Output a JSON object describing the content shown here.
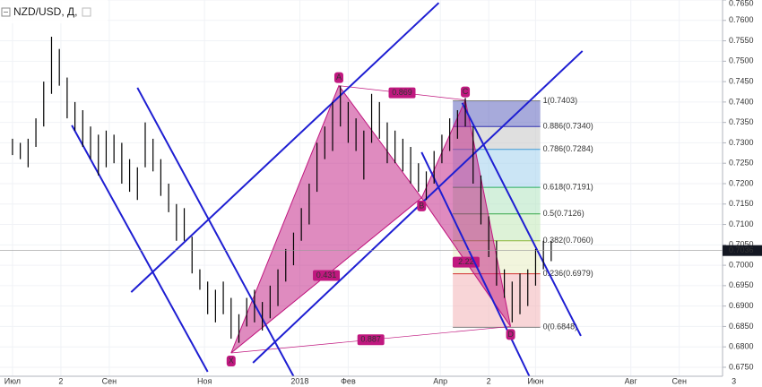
{
  "chart_data": {
    "type": "ohlc",
    "title": "NZD/USD, Д,",
    "color": "#000000",
    "x": [
      0,
      5,
      10,
      15,
      20,
      25,
      30,
      35,
      40,
      45,
      50,
      55,
      60,
      65,
      70,
      75,
      80,
      85,
      90,
      95,
      100,
      105,
      110,
      115,
      120,
      125,
      130,
      135,
      140,
      145,
      150,
      155,
      160,
      165,
      170,
      175,
      180,
      185,
      190,
      195,
      200,
      205,
      210,
      215,
      220,
      225,
      230,
      235,
      240,
      245,
      250,
      255,
      260,
      265,
      270,
      275,
      280,
      285,
      290,
      295,
      300,
      305,
      310,
      315,
      320,
      325,
      330,
      335,
      340,
      345
    ],
    "high": [
      0.731,
      0.73,
      0.731,
      0.736,
      0.745,
      0.756,
      0.753,
      0.746,
      0.74,
      0.738,
      0.734,
      0.732,
      0.733,
      0.732,
      0.73,
      0.726,
      0.724,
      0.735,
      0.731,
      0.726,
      0.72,
      0.715,
      0.714,
      0.707,
      0.699,
      0.696,
      0.694,
      0.696,
      0.692,
      0.688,
      0.692,
      0.694,
      0.691,
      0.695,
      0.699,
      0.704,
      0.708,
      0.714,
      0.72,
      0.73,
      0.734,
      0.74,
      0.744,
      0.74,
      0.736,
      0.733,
      0.742,
      0.74,
      0.735,
      0.733,
      0.731,
      0.729,
      0.725,
      0.723,
      0.728,
      0.732,
      0.736,
      0.738,
      0.741,
      0.734,
      0.722,
      0.712,
      0.706,
      0.699,
      0.696,
      0.698,
      0.699,
      0.704,
      0.706,
      0.706
    ],
    "low": [
      0.727,
      0.726,
      0.724,
      0.729,
      0.734,
      0.742,
      0.744,
      0.736,
      0.733,
      0.729,
      0.726,
      0.722,
      0.724,
      0.725,
      0.72,
      0.718,
      0.716,
      0.724,
      0.723,
      0.717,
      0.713,
      0.706,
      0.706,
      0.698,
      0.694,
      0.688,
      0.686,
      0.688,
      0.682,
      0.681,
      0.685,
      0.686,
      0.684,
      0.687,
      0.69,
      0.696,
      0.7,
      0.706,
      0.71,
      0.718,
      0.726,
      0.728,
      0.734,
      0.73,
      0.728,
      0.721,
      0.73,
      0.731,
      0.725,
      0.725,
      0.723,
      0.72,
      0.718,
      0.716,
      0.72,
      0.725,
      0.728,
      0.731,
      0.734,
      0.72,
      0.71,
      0.702,
      0.695,
      0.692,
      0.686,
      0.688,
      0.69,
      0.695,
      0.699,
      0.701
    ],
    "xlim": [
      -8,
      480
    ],
    "ylim": [
      0.6728,
      0.765
    ],
    "xticks": [
      {
        "value": 0,
        "label": "Июл"
      },
      {
        "value": 31,
        "label": "2"
      },
      {
        "value": 62,
        "label": "Сен"
      },
      {
        "value": 123,
        "label": "Ноя"
      },
      {
        "value": 184,
        "label": "2018"
      },
      {
        "value": 215,
        "label": "Фев"
      },
      {
        "value": 274,
        "label": "Апр"
      },
      {
        "value": 305,
        "label": "2"
      },
      {
        "value": 335,
        "label": "Июн"
      },
      {
        "value": 396,
        "label": "Авг"
      },
      {
        "value": 427,
        "label": "Сен"
      },
      {
        "value": 462,
        "label": "3"
      }
    ],
    "yticks": [
      {
        "value": 0.675,
        "label": "0.6750"
      },
      {
        "value": 0.68,
        "label": "0.6800"
      },
      {
        "value": 0.685,
        "label": "0.6850"
      },
      {
        "value": 0.69,
        "label": "0.6900"
      },
      {
        "value": 0.695,
        "label": "0.6950"
      },
      {
        "value": 0.7,
        "label": "0.7000"
      },
      {
        "value": 0.705,
        "label": "0.7050"
      },
      {
        "value": 0.71,
        "label": "0.7100"
      },
      {
        "value": 0.715,
        "label": "0.7150"
      },
      {
        "value": 0.72,
        "label": "0.7200"
      },
      {
        "value": 0.725,
        "label": "0.7250"
      },
      {
        "value": 0.73,
        "label": "0.7300"
      },
      {
        "value": 0.735,
        "label": "0.7350"
      },
      {
        "value": 0.74,
        "label": "0.7400"
      },
      {
        "value": 0.745,
        "label": "0.7450"
      },
      {
        "value": 0.75,
        "label": "0.7500"
      },
      {
        "value": 0.755,
        "label": "0.7550"
      },
      {
        "value": 0.76,
        "label": "0.7600"
      },
      {
        "value": 0.765,
        "label": "0.7650"
      }
    ],
    "grid": true,
    "last": {
      "value": 0.7036,
      "label": "0.7036"
    },
    "line_color": "#1e1ed2",
    "lines": [
      {
        "x": [
          38,
          125
        ],
        "y": [
          0.7343,
          0.6739
        ]
      },
      {
        "x": [
          80,
          180
        ],
        "y": [
          0.7435,
          0.6728
        ]
      },
      {
        "x": [
          76,
          273
        ],
        "y": [
          0.6934,
          0.7643
        ]
      },
      {
        "x": [
          154,
          365
        ],
        "y": [
          0.6761,
          0.7525
        ]
      },
      {
        "x": [
          262,
          331
        ],
        "y": [
          0.7277,
          0.6728
        ]
      },
      {
        "x": [
          288,
          364
        ],
        "y": [
          0.7398,
          0.6827
        ]
      }
    ],
    "pattern": {
      "color": "#c0187f",
      "points": [
        {
          "label": "X",
          "x": 140,
          "y": 0.6785
        },
        {
          "label": "A",
          "x": 209,
          "y": 0.744
        },
        {
          "label": "B",
          "x": 262,
          "y": 0.7165
        },
        {
          "label": "C",
          "x": 290,
          "y": 0.7405
        },
        {
          "label": "D",
          "x": 319,
          "y": 0.685
        }
      ],
      "ratios": [
        {
          "value": 0.431,
          "from": 0,
          "to": 2
        },
        {
          "value": 0.869,
          "from": 1,
          "to": 3
        },
        {
          "value": 0.887,
          "from": 0,
          "to": 4
        },
        {
          "value": 2.22,
          "from": 2,
          "to": 4
        }
      ]
    },
    "fib": {
      "x": [
        282,
        338
      ],
      "levels": [
        {
          "value": 0.7403,
          "label": "1(0.7403)",
          "color": "#808080"
        },
        {
          "value": 0.734,
          "label": "0.886(0.7340)",
          "color": "#3030b0"
        },
        {
          "value": 0.7284,
          "label": "0.786(0.7284)",
          "color": "#3e9ad6"
        },
        {
          "value": 0.7191,
          "label": "0.618(0.7191)",
          "color": "#2aad5f"
        },
        {
          "value": 0.7126,
          "label": "0.5(0.7126)",
          "color": "#36a84a"
        },
        {
          "value": 0.706,
          "label": "0.382(0.7060)",
          "color": "#8cb63c"
        },
        {
          "value": 0.6979,
          "label": "0.236(0.6979)",
          "color": "#d32f2f"
        },
        {
          "value": 0.6848,
          "label": "0(0.6848)",
          "color": "#808080"
        }
      ],
      "band_colors": [
        "#6d72c3",
        "#c9c9c9",
        "#a9d4ee",
        "#b7e6c4",
        "#c6e9bd",
        "#e9efc7",
        "#f3b9bd"
      ]
    }
  }
}
